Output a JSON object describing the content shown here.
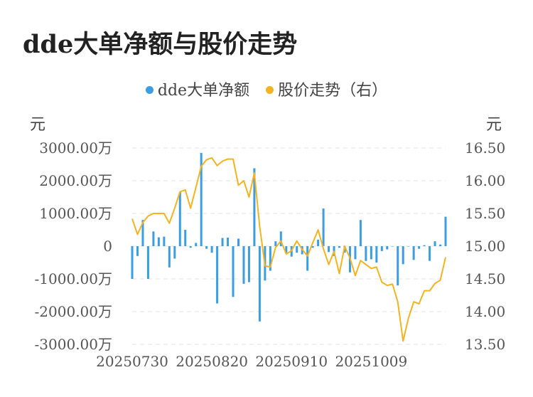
{
  "title": "dde大单净额与股价走势",
  "colors": {
    "bar": "#3a9ee4",
    "line": "#f5b31f",
    "grid": "#e3e3e3"
  },
  "chart_data": {
    "type": "bar+line",
    "legend_position": "top-center",
    "grid": true,
    "y_left": {
      "unit_label": "元",
      "ylim": [
        -3000,
        3000
      ],
      "ticks": [
        3000,
        2000,
        1000,
        0,
        -1000,
        -2000,
        -3000
      ],
      "tick_labels": [
        "3000.00万",
        "2000.00万",
        "1000.00万",
        "0",
        "-1000.00万",
        "-2000.00万",
        "-3000.00万"
      ]
    },
    "y_right": {
      "unit_label": "元",
      "ylim": [
        13.5,
        16.5
      ],
      "ticks": [
        16.5,
        16.0,
        15.5,
        15.0,
        14.5,
        14.0,
        13.5
      ],
      "tick_labels": [
        "16.50",
        "16.00",
        "15.50",
        "15.00",
        "14.50",
        "14.00",
        "13.50"
      ]
    },
    "x_tick_labels": [
      {
        "index": 0,
        "label": "20250730"
      },
      {
        "index": 15,
        "label": "20250820"
      },
      {
        "index": 30,
        "label": "20250910"
      },
      {
        "index": 45,
        "label": "20251009"
      }
    ],
    "series": [
      {
        "name": "dde大单净额",
        "type": "bar",
        "axis": "left",
        "values": [
          -1000,
          -300,
          800,
          -1000,
          450,
          270,
          290,
          -650,
          -380,
          1650,
          500,
          -50,
          100,
          2850,
          -80,
          -200,
          -1750,
          250,
          260,
          -1550,
          230,
          -1150,
          -1100,
          2380,
          -2300,
          -1050,
          -750,
          150,
          450,
          -200,
          -320,
          -200,
          -250,
          -750,
          -50,
          200,
          1150,
          -180,
          -300,
          -50,
          -200,
          -800,
          -400,
          800,
          -450,
          -400,
          -500,
          -150,
          -100,
          0,
          -1200,
          -550,
          0,
          -420,
          -80,
          30,
          -450,
          150,
          50,
          900
        ]
      },
      {
        "name": "股价走势（右）",
        "type": "line",
        "axis": "right",
        "values": [
          15.42,
          15.18,
          15.36,
          15.46,
          15.5,
          15.5,
          15.5,
          15.35,
          15.58,
          15.83,
          15.86,
          15.58,
          15.9,
          16.22,
          16.32,
          16.35,
          16.23,
          16.3,
          16.33,
          16.33,
          15.93,
          16.0,
          15.75,
          16.12,
          15.3,
          14.7,
          14.68,
          14.98,
          15.08,
          14.88,
          14.93,
          15.08,
          14.95,
          14.85,
          15.05,
          15.25,
          14.96,
          14.72,
          14.92,
          14.58,
          15.0,
          14.82,
          14.55,
          14.78,
          14.72,
          14.66,
          14.68,
          14.45,
          14.4,
          14.42,
          14.15,
          13.55,
          13.9,
          14.15,
          14.12,
          14.32,
          14.32,
          14.43,
          14.48,
          14.83
        ]
      }
    ]
  }
}
